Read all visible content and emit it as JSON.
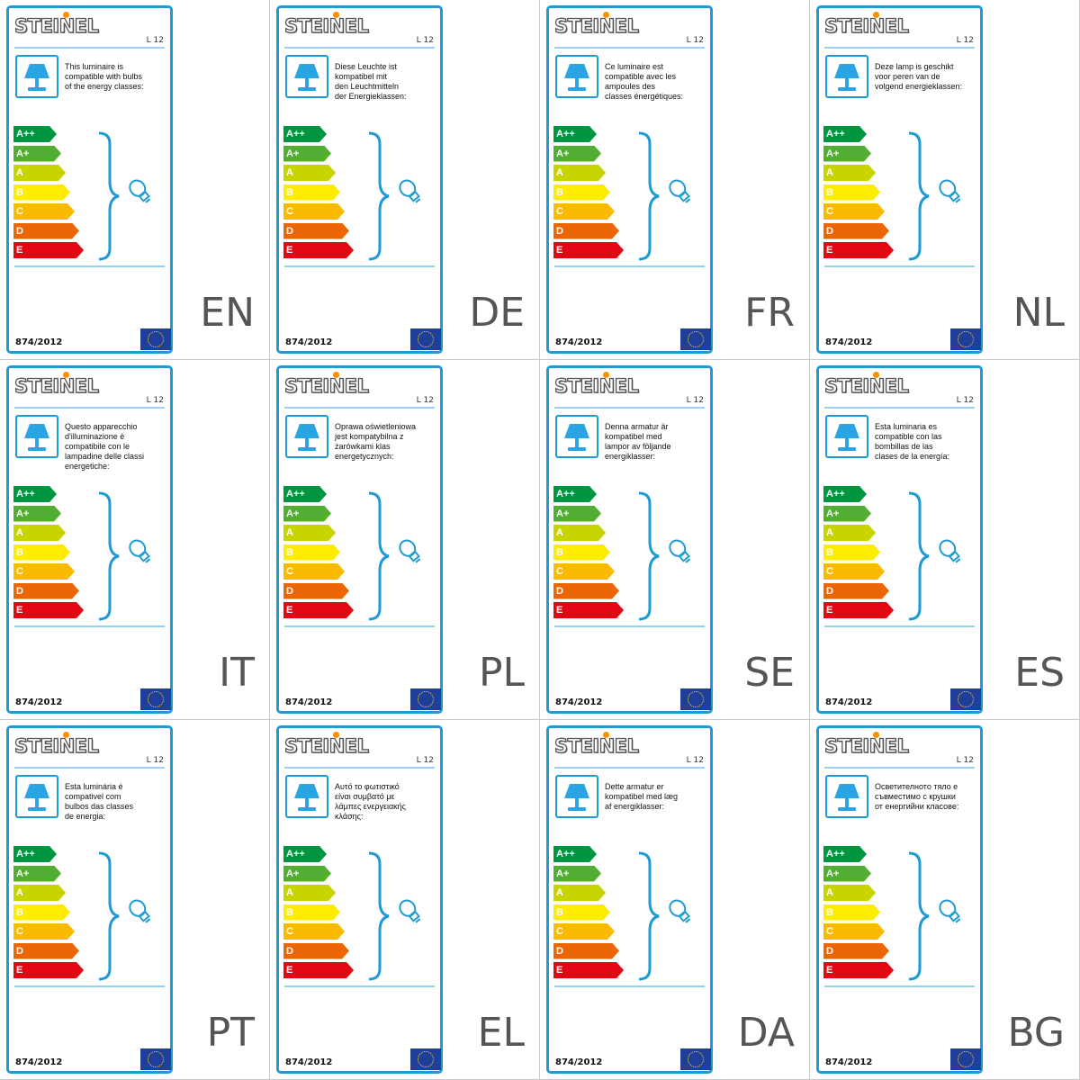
{
  "brand": "STEINEL",
  "model": "L 12",
  "regulation": "874/2012",
  "icons": {
    "lamp": "table-lamp-icon",
    "bulb": "light-bulb-icon",
    "brace": "curly-brace-icon",
    "flag": "eu-flag-icon"
  },
  "colors": {
    "frame": "#1e9ad6",
    "rule": "#9bd1ee",
    "brand_dot": "#f39200"
  },
  "energy_classes": [
    {
      "label": "A++",
      "color": "#009640"
    },
    {
      "label": "A+",
      "color": "#52ae32"
    },
    {
      "label": "A",
      "color": "#c8d400"
    },
    {
      "label": "B",
      "color": "#ffed00"
    },
    {
      "label": "C",
      "color": "#fbba00"
    },
    {
      "label": "D",
      "color": "#ec6608"
    },
    {
      "label": "E",
      "color": "#e30613"
    }
  ],
  "labels": [
    {
      "lang": "EN",
      "text": "This luminaire is\ncompatible with bulbs\nof the energy classes:"
    },
    {
      "lang": "DE",
      "text": "Diese Leuchte ist\nkompatibel mit\nden Leuchtmitteln\nder Energieklassen:"
    },
    {
      "lang": "FR",
      "text": "Ce luminaire est\ncompatible avec les\nampoules des\nclasses énergétiques:"
    },
    {
      "lang": "NL",
      "text": "Deze lamp is geschikt\nvoor peren van de\nvolgend energieklassen:"
    },
    {
      "lang": "IT",
      "text": "Questo apparecchio\nd'illuminazione è\ncompatibile con le\nlampadine delle classi\nenergetiche:"
    },
    {
      "lang": "PL",
      "text": "Oprawa oświetleniowa\njest kompatybilna z\nżarówkami klas\nenergetycznych:"
    },
    {
      "lang": "SE",
      "text": "Denna armatur är\nkompatibel med\nlampor av följande\nenergiklasser:"
    },
    {
      "lang": "ES",
      "text": "Esta luminaria es\ncompatible con las\nbombillas de las\nclases de la energía:"
    },
    {
      "lang": "PT",
      "text": "Esta luminária é\ncompativel com\nbulbos das classes\nde energia:"
    },
    {
      "lang": "EL",
      "text": "Αυτό το φωτιστικό\nείναι συμβατό με\nλάμπες ενεργειακής\nκλάσης:"
    },
    {
      "lang": "DA",
      "text": "Dette armatur er\nkompatibel med læg\naf energiklasser:"
    },
    {
      "lang": "BG",
      "text": "Осветителното тяло е\nсъвместимо с крушки\nот енергийни класове:"
    }
  ]
}
